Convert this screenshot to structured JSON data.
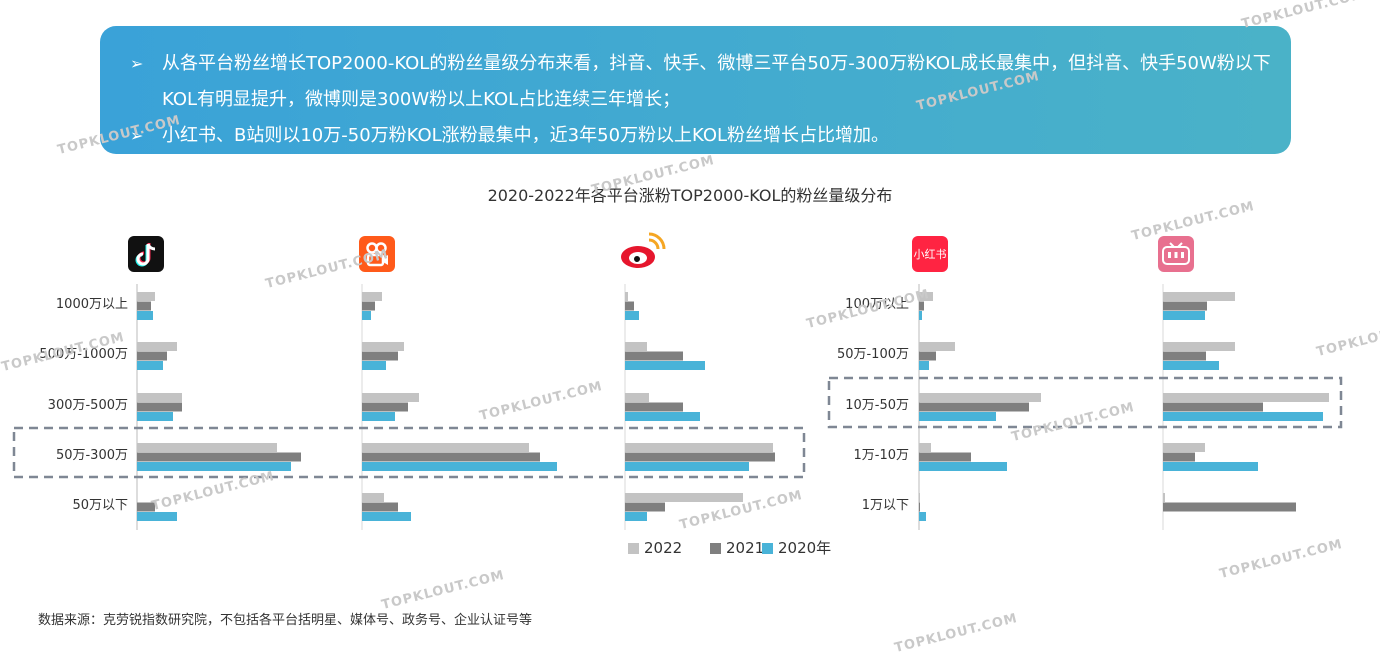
{
  "banner": {
    "bullets": [
      "从各平台粉丝增长TOP2000-KOL的粉丝量级分布来看，抖音、快手、微博三平台50万-300万粉KOL成长最集中，但抖音、快手50W粉以下KOL有明显提升，微博则是300W粉以上KOL占比连续三年增长；",
      "小红书、B站则以10万-50万粉KOL涨粉最集中，近3年50万粉以上KOL粉丝增长占比增加。"
    ],
    "arrow_glyph": "➢"
  },
  "watermark": "TOPKLOUT.COM",
  "source": "数据来源：克劳锐指数研究院，不包括各平台括明星、媒体号、政务号、企业认证号等",
  "platform_icons": [
    "douyin-logo-icon",
    "kuaishou-logo-icon",
    "weibo-logo-icon",
    "xiaohongshu-logo-icon",
    "bilibili-logo-icon"
  ],
  "xiaohongshu_logo_text": "小红书",
  "colors": {
    "y2022": "#c3c3c3",
    "y2021": "#7f7f7f",
    "y2020": "#49b3d8",
    "banner": "#3ea8d4",
    "highlight": "#7f8794"
  },
  "chart_data": {
    "type": "bar",
    "title": "2020-2022年各平台涨粉TOP2000-KOL的粉丝量级分布",
    "legend": [
      "2022",
      "2021",
      "2020年"
    ],
    "legend_position": "bottom",
    "groups": [
      {
        "categories": [
          "1000万以上",
          "500万-1000万",
          "300万-500万",
          "50万-300万",
          "50万以下"
        ],
        "highlight_category": "50万-300万",
        "panels": [
          {
            "series": [
              [
                18,
                40,
                45,
                140,
                0
              ],
              [
                14,
                30,
                45,
                164,
                18
              ],
              [
                16,
                26,
                36,
                154,
                40
              ]
            ]
          },
          {
            "series": [
              [
                20,
                42,
                57,
                167,
                22
              ],
              [
                13,
                36,
                46,
                178,
                36
              ],
              [
                9,
                24,
                33,
                195,
                49
              ]
            ]
          },
          {
            "series": [
              [
                3,
                22,
                24,
                148,
                118
              ],
              [
                9,
                58,
                58,
                150,
                40
              ],
              [
                14,
                80,
                75,
                124,
                22
              ]
            ]
          }
        ]
      },
      {
        "categories": [
          "100万以上",
          "50万-100万",
          "10万-50万",
          "1万-10万",
          "1万以下"
        ],
        "highlight_category": "10万-50万",
        "panels": [
          {
            "series": [
              [
                14,
                36,
                122,
                12,
                1
              ],
              [
                5,
                17,
                110,
                52,
                1
              ],
              [
                3,
                10,
                77,
                88,
                7
              ]
            ]
          },
          {
            "series": [
              [
                72,
                72,
                166,
                42,
                2
              ],
              [
                44,
                43,
                100,
                32,
                133
              ],
              [
                42,
                56,
                160,
                95,
                0
              ]
            ]
          }
        ]
      }
    ]
  }
}
